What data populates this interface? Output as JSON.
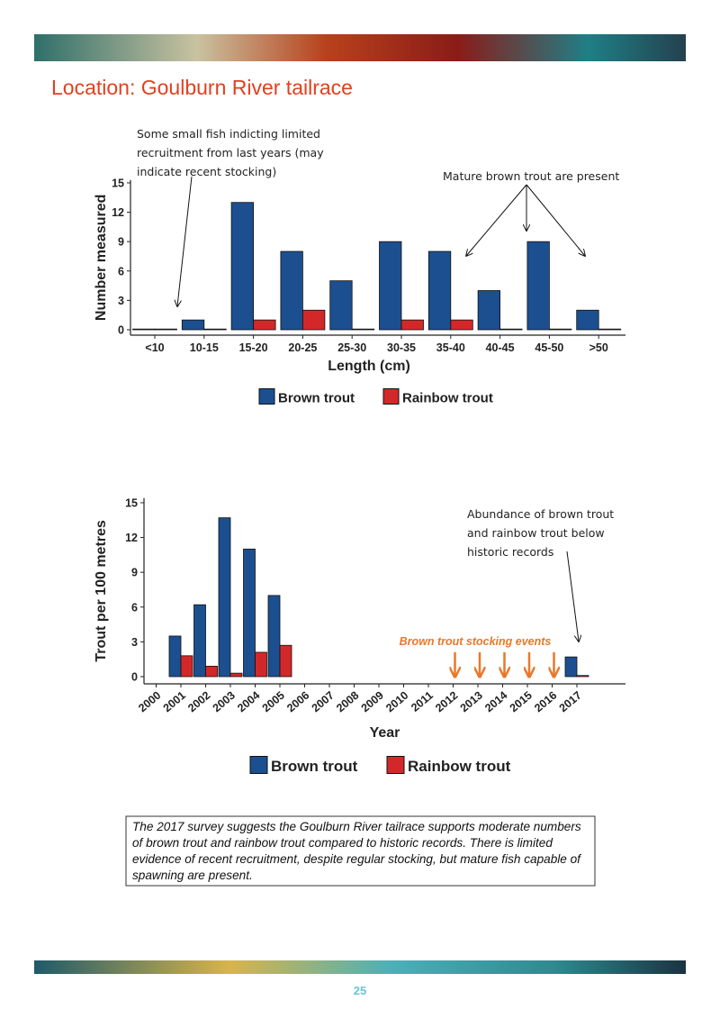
{
  "header": {
    "title": "Location:  Goulburn River tailrace"
  },
  "chart_data": [
    {
      "type": "bar",
      "xlabel": "Length (cm)",
      "ylabel": "Number measured",
      "categories": [
        "<10",
        "10-15",
        "15-20",
        "20-25",
        "25-30",
        "30-35",
        "35-40",
        "40-45",
        "45-50",
        ">50"
      ],
      "series": [
        {
          "name": "Brown trout",
          "color": "#1c4f8f",
          "values": [
            0,
            1,
            13,
            8,
            5,
            9,
            8,
            4,
            9,
            2
          ]
        },
        {
          "name": "Rainbow trout",
          "color": "#d3282a",
          "values": [
            0,
            0,
            1,
            2,
            0,
            1,
            1,
            0,
            0,
            0
          ]
        }
      ],
      "ylim": [
        0,
        15.3
      ],
      "yticks": [
        0,
        3,
        6,
        9,
        12,
        15
      ],
      "annotations": [
        "Some small fish indicting limited recruitment from last years (may indicate recent stocking)",
        "Mature brown trout are present"
      ]
    },
    {
      "type": "bar",
      "xlabel": "Year",
      "ylabel": "Trout per 100 metres",
      "categories": [
        "2000",
        "2001",
        "2002",
        "2003",
        "2004",
        "2005",
        "2006",
        "2007",
        "2008",
        "2009",
        "2010",
        "2011",
        "2012",
        "2013",
        "2014",
        "2015",
        "2016",
        "2017"
      ],
      "series": [
        {
          "name": "Brown trout",
          "color": "#1c4f8f",
          "values": [
            null,
            3.5,
            6.2,
            13.7,
            11.0,
            7.0,
            null,
            null,
            null,
            null,
            null,
            null,
            null,
            null,
            null,
            null,
            null,
            1.7
          ]
        },
        {
          "name": "Rainbow trout",
          "color": "#d3282a",
          "values": [
            null,
            1.8,
            0.9,
            0.3,
            2.1,
            2.7,
            null,
            null,
            null,
            null,
            null,
            null,
            null,
            null,
            null,
            null,
            null,
            0.1
          ]
        }
      ],
      "ylim": [
        0,
        15.4
      ],
      "yticks": [
        0,
        3,
        6,
        9,
        12,
        15
      ],
      "annotations": [
        "Abundance of brown trout and rainbow trout below historic records",
        "Brown trout stocking events"
      ]
    }
  ],
  "caption": "The 2017 survey suggests the Goulburn River tailrace supports moderate numbers of brown trout and rainbow trout compared to historic records. There is limited evidence of recent recruitment, despite regular stocking, but mature fish capable of spawning are present.",
  "page_number": "25"
}
